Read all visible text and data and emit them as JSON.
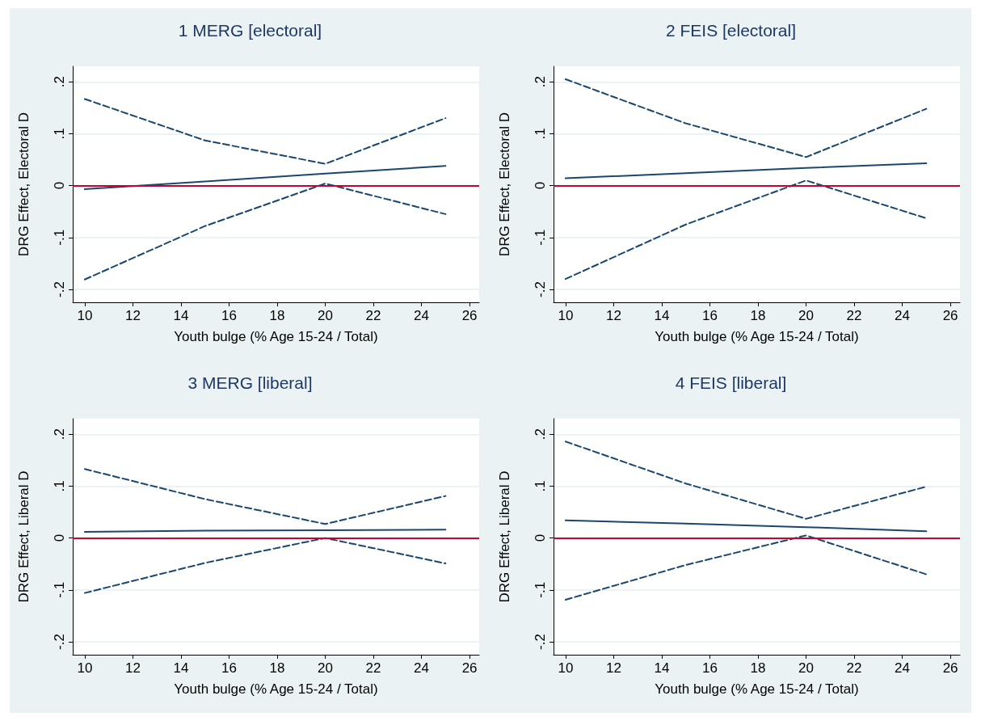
{
  "chart_data": [
    {
      "type": "line",
      "title": "1 MERG [electoral]",
      "xlabel": "Youth bulge (% Age 15-24 / Total)",
      "ylabel": "DRG Effect, Electoral D",
      "x": [
        10,
        15,
        20,
        25
      ],
      "xlim": [
        9.5,
        26.4
      ],
      "xticks": [
        10,
        12,
        14,
        16,
        18,
        20,
        22,
        24,
        26
      ],
      "ylim": [
        -0.225,
        0.23
      ],
      "yticks": [
        {
          "value": -0.2,
          "label": "-.2"
        },
        {
          "value": -0.1,
          "label": "-.1"
        },
        {
          "value": 0,
          "label": "0"
        },
        {
          "value": 0.1,
          "label": ".1"
        },
        {
          "value": 0.2,
          "label": ".2"
        }
      ],
      "grid": "y",
      "marker": "none",
      "series": [
        {
          "color": "#1a476f",
          "line_style": "solid",
          "values": [
            -0.007,
            0.008,
            0.023,
            0.038
          ]
        },
        {
          "color": "#1a476f",
          "line_style": "dashed",
          "values": [
            0.167,
            0.087,
            0.042,
            0.13
          ]
        },
        {
          "color": "#1a476f",
          "line_style": "dashed",
          "values": [
            -0.181,
            -0.078,
            0.004,
            -0.055
          ]
        }
      ],
      "ref_lines": [
        {
          "axis": "y",
          "value": 0,
          "color": "#c10534"
        }
      ]
    },
    {
      "type": "line",
      "title": "2 FEIS [electoral]",
      "xlabel": "Youth bulge (% Age 15-24 / Total)",
      "ylabel": "DRG Effect, Electoral D",
      "x": [
        10,
        15,
        20,
        25
      ],
      "xlim": [
        9.5,
        26.4
      ],
      "xticks": [
        10,
        12,
        14,
        16,
        18,
        20,
        22,
        24,
        26
      ],
      "ylim": [
        -0.225,
        0.23
      ],
      "yticks": [
        {
          "value": -0.2,
          "label": "-.2"
        },
        {
          "value": -0.1,
          "label": "-.1"
        },
        {
          "value": 0,
          "label": "0"
        },
        {
          "value": 0.1,
          "label": ".1"
        },
        {
          "value": 0.2,
          "label": ".2"
        }
      ],
      "grid": "y",
      "marker": "none",
      "series": [
        {
          "color": "#1a476f",
          "line_style": "solid",
          "values": [
            0.014,
            0.024,
            0.034,
            0.043
          ]
        },
        {
          "color": "#1a476f",
          "line_style": "dashed",
          "values": [
            0.205,
            0.12,
            0.055,
            0.148
          ]
        },
        {
          "color": "#1a476f",
          "line_style": "dashed",
          "values": [
            -0.18,
            -0.075,
            0.01,
            -0.063
          ]
        }
      ],
      "ref_lines": [
        {
          "axis": "y",
          "value": 0,
          "color": "#c10534"
        }
      ]
    },
    {
      "type": "line",
      "title": "3 MERG [liberal]",
      "xlabel": "Youth bulge (% Age 15-24 / Total)",
      "ylabel": "DRG Effect, Liberal D",
      "x": [
        10,
        15,
        20,
        25
      ],
      "xlim": [
        9.5,
        26.4
      ],
      "xticks": [
        10,
        12,
        14,
        16,
        18,
        20,
        22,
        24,
        26
      ],
      "ylim": [
        -0.225,
        0.23
      ],
      "yticks": [
        {
          "value": -0.2,
          "label": "-.2"
        },
        {
          "value": -0.1,
          "label": "-.1"
        },
        {
          "value": 0,
          "label": "0"
        },
        {
          "value": 0.1,
          "label": ".1"
        },
        {
          "value": 0.2,
          "label": ".2"
        }
      ],
      "grid": "y",
      "marker": "none",
      "series": [
        {
          "color": "#1a476f",
          "line_style": "solid",
          "values": [
            0.012,
            0.014,
            0.015,
            0.016
          ]
        },
        {
          "color": "#1a476f",
          "line_style": "dashed",
          "values": [
            0.133,
            0.075,
            0.027,
            0.081
          ]
        },
        {
          "color": "#1a476f",
          "line_style": "dashed",
          "values": [
            -0.106,
            -0.048,
            0.0,
            -0.049
          ]
        }
      ],
      "ref_lines": [
        {
          "axis": "y",
          "value": 0,
          "color": "#c10534"
        }
      ]
    },
    {
      "type": "line",
      "title": "4 FEIS [liberal]",
      "xlabel": "Youth bulge (% Age 15-24 / Total)",
      "ylabel": "DRG Effect, Liberal D",
      "x": [
        10,
        15,
        20,
        25
      ],
      "xlim": [
        9.5,
        26.4
      ],
      "xticks": [
        10,
        12,
        14,
        16,
        18,
        20,
        22,
        24,
        26
      ],
      "ylim": [
        -0.225,
        0.23
      ],
      "yticks": [
        {
          "value": -0.2,
          "label": "-.2"
        },
        {
          "value": -0.1,
          "label": "-.1"
        },
        {
          "value": 0,
          "label": "0"
        },
        {
          "value": 0.1,
          "label": ".1"
        },
        {
          "value": 0.2,
          "label": ".2"
        }
      ],
      "grid": "y",
      "marker": "none",
      "series": [
        {
          "color": "#1a476f",
          "line_style": "solid",
          "values": [
            0.034,
            0.028,
            0.021,
            0.013
          ]
        },
        {
          "color": "#1a476f",
          "line_style": "dashed",
          "values": [
            0.186,
            0.105,
            0.037,
            0.099
          ]
        },
        {
          "color": "#1a476f",
          "line_style": "dashed",
          "values": [
            -0.119,
            -0.052,
            0.005,
            -0.07
          ]
        }
      ],
      "ref_lines": [
        {
          "axis": "y",
          "value": 0,
          "color": "#c10534"
        }
      ]
    }
  ]
}
